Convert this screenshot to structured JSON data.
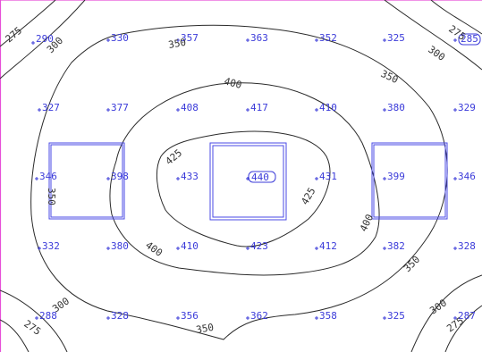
{
  "grid_points": {
    "row1": [
      "290",
      "330",
      "357",
      "363",
      "352",
      "325",
      "285"
    ],
    "row2": [
      "327",
      "377",
      "408",
      "417",
      "410",
      "380",
      "329"
    ],
    "row3": [
      "346",
      "398",
      "433",
      "440",
      "431",
      "399",
      "346"
    ],
    "row4": [
      "332",
      "380",
      "410",
      "423",
      "412",
      "382",
      "328"
    ],
    "row5": [
      "288",
      "328",
      "356",
      "362",
      "358",
      "325",
      "287"
    ]
  },
  "contour_labels": {
    "c275_tl": "275",
    "c300_tl": "300",
    "c350_top": "350",
    "c300_tr": "300",
    "c275_tr": "275",
    "c350_right": "350",
    "c400_top": "400",
    "c425_left": "425",
    "c350_left": "350",
    "c425_right": "425",
    "c400_right": "400",
    "c400_bottom": "400",
    "c350_br": "350",
    "c300_br": "300",
    "c275_br": "275",
    "c275_bl": "275",
    "c300_bl": "300",
    "c350_bottom": "350"
  },
  "colors": {
    "frame": "#e64fd8",
    "contour": "#2a2a2a",
    "label": "#3b3bd9",
    "box": "#4a4ae6"
  }
}
